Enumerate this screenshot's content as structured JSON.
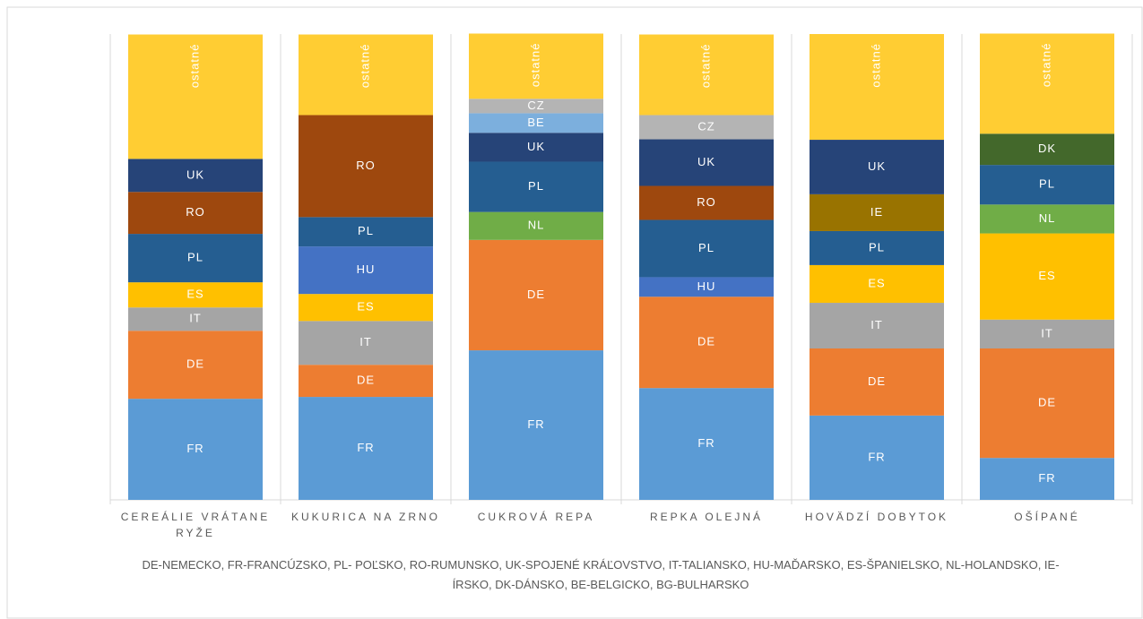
{
  "chart_data": {
    "type": "stacked_bar",
    "categories": [
      "CEREÁLIE VRÁTANE RYŽE",
      "KUKURICA NA ZRNO",
      "CUKROVÁ REPA",
      "REPKA OLEJNÁ",
      "HOVÄDZÍ DOBYTOK",
      "OŠÍPANÉ"
    ],
    "ylim": [
      0,
      100
    ],
    "note": "DE-NEMECKO, FR-FRANCÚZSKO, PL- POĽSKO, RO-RUMUNSKO, UK-SPOJENÉ KRÁĽOVSTVO, IT-TALIANSKO, HU-MAĎARSKO, ES-ŠPANIELSKO, NL-HOLANDSKO, IE-ÍRSKO, DK-DÁNSKO, BE-BELGICKO, BG-BULHARSKO",
    "series": [
      {
        "name": "FR",
        "color": "#5b9bd5",
        "values": [
          21.7,
          22.1,
          32.1,
          24.0,
          18.1,
          9.0
        ]
      },
      {
        "name": "DE",
        "color": "#ed7d31",
        "values": [
          14.6,
          6.9,
          23.7,
          19.6,
          14.4,
          23.5
        ]
      },
      {
        "name": "IT",
        "color": "#a5a5a5",
        "values": [
          5.0,
          9.4,
          null,
          null,
          9.8,
          6.2
        ]
      },
      {
        "name": "ES",
        "color": "#ffc000",
        "values": [
          5.4,
          5.8,
          null,
          null,
          8.1,
          18.5
        ]
      },
      {
        "name": "HU",
        "color": "#4472c4",
        "values": [
          null,
          10.2,
          null,
          4.2,
          null,
          null
        ]
      },
      {
        "name": "NL",
        "color": "#70ad47",
        "values": [
          null,
          null,
          6.0,
          null,
          null,
          6.2
        ]
      },
      {
        "name": "PL",
        "color": "#255e91",
        "values": [
          10.4,
          6.3,
          10.8,
          12.3,
          7.3,
          8.5
        ]
      },
      {
        "name": "RO",
        "color": "#9e480e",
        "values": [
          9.0,
          21.9,
          null,
          7.3,
          null,
          null
        ]
      },
      {
        "name": "IE",
        "color": "#997300",
        "values": [
          null,
          null,
          null,
          null,
          7.9,
          null
        ]
      },
      {
        "name": "UK",
        "color": "#264478",
        "values": [
          7.1,
          null,
          6.2,
          10.0,
          11.7,
          null
        ]
      },
      {
        "name": "DK",
        "color": "#43682b",
        "values": [
          null,
          null,
          null,
          null,
          null,
          6.7
        ]
      },
      {
        "name": "BE",
        "color": "#7cafdd",
        "values": [
          null,
          null,
          4.2,
          null,
          null,
          null
        ]
      },
      {
        "name": "CZ",
        "color": "#b4b4b4",
        "values": [
          null,
          null,
          3.1,
          5.2,
          null,
          null
        ]
      },
      {
        "name": "ostatné",
        "color": "#ffcd33",
        "values": [
          26.7,
          17.3,
          14.0,
          17.3,
          22.7,
          21.5
        ]
      }
    ]
  }
}
